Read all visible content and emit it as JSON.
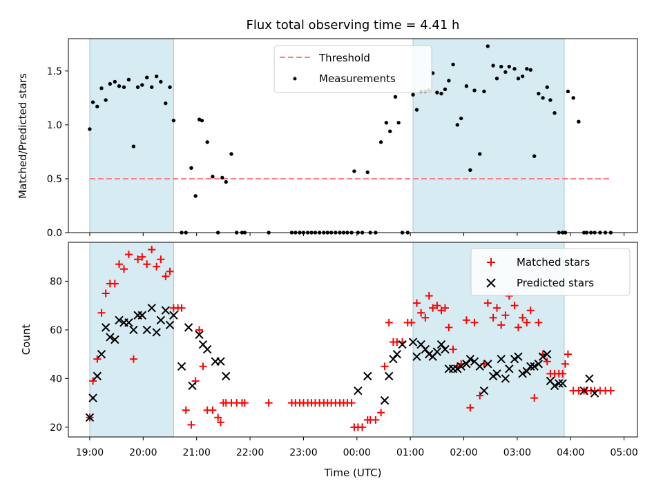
{
  "chart_data": [
    {
      "type": "scatter",
      "title": "Flux total observing time = 4.41 h",
      "xlabel": "",
      "ylabel": "Matched/Predicted stars",
      "ylim": [
        0,
        1.8
      ],
      "xlim": [
        18.6,
        29.25
      ],
      "yticks": [
        0.0,
        0.5,
        1.0,
        1.5
      ],
      "ytick_labels": [
        "0.0",
        "0.5",
        "1.0",
        "1.5"
      ],
      "shaded_ranges": [
        [
          19.0,
          20.57
        ],
        [
          25.05,
          27.88
        ]
      ],
      "threshold": {
        "label": "Threshold",
        "value": 0.5,
        "x_range": [
          19.0,
          28.75
        ],
        "color": "#ff8080"
      },
      "legend": {
        "position": "top-center",
        "entries": [
          "Threshold",
          "Measurements"
        ]
      },
      "series": [
        {
          "name": "Measurements",
          "marker": "dot",
          "color": "#000000",
          "x": [
            19.0,
            19.06,
            19.14,
            19.22,
            19.3,
            19.38,
            19.47,
            19.55,
            19.64,
            19.73,
            19.82,
            19.9,
            19.98,
            20.07,
            20.16,
            20.25,
            20.33,
            20.42,
            20.5,
            20.57,
            20.72,
            20.8,
            20.9,
            20.98,
            21.05,
            21.1,
            21.2,
            21.3,
            21.4,
            21.48,
            21.55,
            21.65,
            21.75,
            21.85,
            21.9,
            22.35,
            22.78,
            22.85,
            22.93,
            23.0,
            23.08,
            23.15,
            23.22,
            23.3,
            23.38,
            23.45,
            23.52,
            23.6,
            23.68,
            23.75,
            23.82,
            23.9,
            23.95,
            24.02,
            24.1,
            24.2,
            24.25,
            24.35,
            24.45,
            24.55,
            24.62,
            24.72,
            24.78,
            24.85,
            24.95,
            25.05,
            25.12,
            25.2,
            25.28,
            25.35,
            25.42,
            25.5,
            25.58,
            25.65,
            25.72,
            25.8,
            25.88,
            25.95,
            26.05,
            26.12,
            26.2,
            26.3,
            26.38,
            26.45,
            26.55,
            26.62,
            26.7,
            26.78,
            26.85,
            26.95,
            27.02,
            27.1,
            27.18,
            27.25,
            27.32,
            27.4,
            27.48,
            27.56,
            27.62,
            27.7,
            27.78,
            27.85,
            27.9,
            27.95,
            28.05,
            28.15,
            28.25,
            28.3,
            28.38,
            28.45,
            28.55,
            28.65,
            28.75
          ],
          "y": [
            0.96,
            1.21,
            1.17,
            1.34,
            1.23,
            1.38,
            1.4,
            1.36,
            1.35,
            1.42,
            0.8,
            1.35,
            1.37,
            1.44,
            1.35,
            1.45,
            1.4,
            1.2,
            1.35,
            1.04,
            0.0,
            0.0,
            0.6,
            0.34,
            1.05,
            1.04,
            0.84,
            0.52,
            0.0,
            0.51,
            0.47,
            0.73,
            0.0,
            0.0,
            0.0,
            0.0,
            0.0,
            0.0,
            0.0,
            0.0,
            0.0,
            0.0,
            0.0,
            0.0,
            0.0,
            0.0,
            0.0,
            0.0,
            0.0,
            0.0,
            0.0,
            0.0,
            0.57,
            0.0,
            0.0,
            0.56,
            0.0,
            0.0,
            0.84,
            1.02,
            0.94,
            1.26,
            1.02,
            0.0,
            0.0,
            1.28,
            1.14,
            1.31,
            1.31,
            1.32,
            1.48,
            1.3,
            1.29,
            1.33,
            1.41,
            1.56,
            1.0,
            1.06,
            1.36,
            0.58,
            1.32,
            0.73,
            1.31,
            1.73,
            1.55,
            1.43,
            1.54,
            1.49,
            1.54,
            1.52,
            1.43,
            1.45,
            1.52,
            1.51,
            0.71,
            1.29,
            1.25,
            1.35,
            1.23,
            1.11,
            0.0,
            0.0,
            0.0,
            1.31,
            1.25,
            1.03,
            0.0,
            0.0,
            0.0,
            0.0,
            0.0,
            0.0,
            0.0
          ]
        }
      ]
    },
    {
      "type": "scatter",
      "title": "",
      "xlabel": "Time (UTC)",
      "ylabel": "Count",
      "ylim": [
        16,
        96
      ],
      "xlim": [
        18.6,
        29.25
      ],
      "yticks": [
        20,
        40,
        60,
        80
      ],
      "ytick_labels": [
        "20",
        "40",
        "60",
        "80"
      ],
      "xticks": [
        19,
        20,
        21,
        22,
        23,
        24,
        25,
        26,
        27,
        28,
        29
      ],
      "xtick_labels": [
        "19:00",
        "20:00",
        "21:00",
        "22:00",
        "23:00",
        "00:00",
        "01:00",
        "02:00",
        "03:00",
        "04:00",
        "05:00"
      ],
      "shaded_ranges": [
        [
          19.0,
          20.57
        ],
        [
          25.05,
          27.88
        ]
      ],
      "legend": {
        "position": "top-right",
        "entries": [
          "Matched stars",
          "Predicted stars"
        ]
      },
      "series": [
        {
          "name": "Matched stars",
          "marker": "plus",
          "color": "#ff0000",
          "x": [
            19.0,
            19.06,
            19.14,
            19.22,
            19.3,
            19.38,
            19.47,
            19.55,
            19.64,
            19.73,
            19.82,
            19.9,
            19.98,
            20.07,
            20.16,
            20.25,
            20.33,
            20.42,
            20.5,
            20.57,
            20.65,
            20.72,
            20.8,
            20.9,
            20.98,
            21.05,
            21.12,
            21.2,
            21.3,
            21.4,
            21.45,
            21.5,
            21.55,
            21.65,
            21.75,
            21.85,
            21.9,
            22.35,
            22.78,
            22.85,
            22.93,
            23.0,
            23.08,
            23.15,
            23.22,
            23.3,
            23.38,
            23.45,
            23.52,
            23.6,
            23.68,
            23.75,
            23.82,
            23.9,
            23.95,
            24.02,
            24.1,
            24.2,
            24.25,
            24.35,
            24.45,
            24.52,
            24.6,
            24.68,
            24.75,
            24.85,
            24.95,
            25.02,
            25.12,
            25.2,
            25.28,
            25.35,
            25.42,
            25.5,
            25.58,
            25.65,
            25.72,
            25.8,
            25.88,
            25.95,
            26.05,
            26.12,
            26.2,
            26.3,
            26.38,
            26.45,
            26.55,
            26.62,
            26.7,
            26.78,
            26.85,
            26.95,
            27.02,
            27.1,
            27.18,
            27.25,
            27.32,
            27.4,
            27.48,
            27.56,
            27.62,
            27.7,
            27.78,
            27.85,
            27.9,
            27.95,
            28.05,
            28.15,
            28.25,
            28.3,
            28.38,
            28.45,
            28.55,
            28.65,
            28.75
          ],
          "y": [
            24,
            39,
            48,
            67,
            75,
            79,
            79,
            87,
            85,
            91,
            48,
            89,
            90,
            87,
            93,
            86,
            89,
            82,
            84,
            69,
            69,
            69,
            27,
            21,
            39,
            60,
            45,
            27,
            27,
            24,
            22,
            30,
            30,
            30,
            30,
            30,
            30,
            30,
            30,
            30,
            30,
            30,
            30,
            30,
            30,
            30,
            30,
            30,
            30,
            30,
            30,
            30,
            30,
            30,
            20,
            20,
            20,
            23,
            23,
            23,
            26,
            45,
            63,
            55,
            55,
            55,
            63,
            63,
            71,
            67,
            65,
            74,
            69,
            70,
            68,
            69,
            61,
            52,
            45,
            46,
            64,
            28,
            63,
            33,
            46,
            71,
            65,
            69,
            62,
            66,
            74,
            70,
            61,
            65,
            63,
            68,
            32,
            63,
            50,
            47,
            42,
            42,
            42,
            42,
            46,
            50,
            35,
            35,
            35,
            35,
            35,
            35,
            35,
            35,
            35
          ]
        },
        {
          "name": "Predicted stars",
          "marker": "x",
          "color": "#000000",
          "x": [
            19.0,
            19.06,
            19.14,
            19.22,
            19.3,
            19.38,
            19.47,
            19.55,
            19.64,
            19.73,
            19.82,
            19.9,
            19.98,
            20.07,
            20.16,
            20.25,
            20.33,
            20.42,
            20.5,
            20.57,
            20.72,
            20.85,
            20.92,
            21.05,
            21.12,
            21.2,
            21.35,
            21.45,
            21.55,
            24.02,
            24.2,
            24.52,
            24.6,
            24.68,
            24.75,
            24.85,
            25.05,
            25.12,
            25.2,
            25.28,
            25.35,
            25.42,
            25.5,
            25.58,
            25.65,
            25.72,
            25.8,
            25.88,
            25.95,
            26.05,
            26.12,
            26.2,
            26.3,
            26.38,
            26.45,
            26.55,
            26.62,
            26.7,
            26.78,
            26.85,
            26.95,
            27.02,
            27.1,
            27.18,
            27.25,
            27.32,
            27.4,
            27.48,
            27.56,
            27.62,
            27.7,
            27.78,
            27.85,
            28.25,
            28.35,
            28.45
          ],
          "y": [
            24,
            32,
            41,
            50,
            61,
            57,
            56,
            64,
            63,
            63,
            60,
            66,
            66,
            60,
            69,
            59,
            64,
            68,
            62,
            66,
            45,
            61,
            37,
            58,
            54,
            52,
            47,
            47,
            41,
            35,
            41,
            31,
            41,
            48,
            50,
            54,
            55,
            49,
            54,
            52,
            50,
            49,
            51,
            54,
            52,
            44,
            44,
            44,
            45,
            46,
            48,
            47,
            45,
            35,
            46,
            41,
            42,
            48,
            40,
            44,
            48,
            49,
            42,
            43,
            45,
            45,
            46,
            49,
            50,
            39,
            37,
            38,
            38,
            35,
            40,
            34
          ]
        }
      ]
    }
  ]
}
